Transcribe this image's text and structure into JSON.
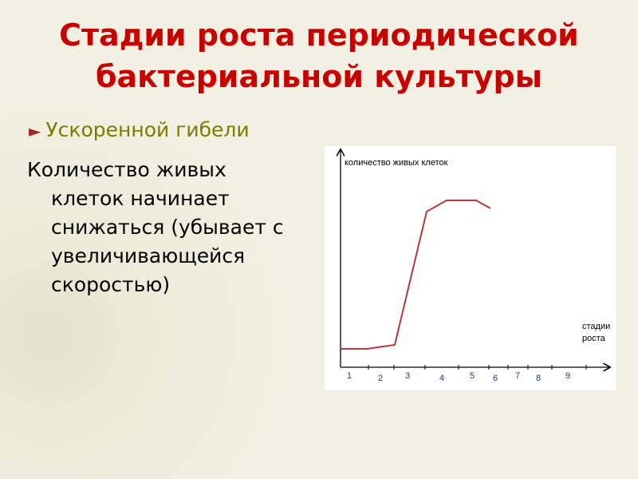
{
  "slide": {
    "title": [
      "Стадии роста периодической",
      "бактериальной культуры"
    ],
    "bullet": "Ускоренной гибели",
    "body": [
      "Количество живых",
      "клеток начинает",
      "снижаться (убывает с",
      "увеличивающейся",
      "скоростью)"
    ],
    "figure": {
      "y_label": "количество живых клеток",
      "x_label": [
        "стадии",
        "роста"
      ],
      "stages": [
        "1",
        "2",
        "3",
        "4",
        "5",
        "6",
        "7",
        "8",
        "9"
      ]
    }
  }
}
